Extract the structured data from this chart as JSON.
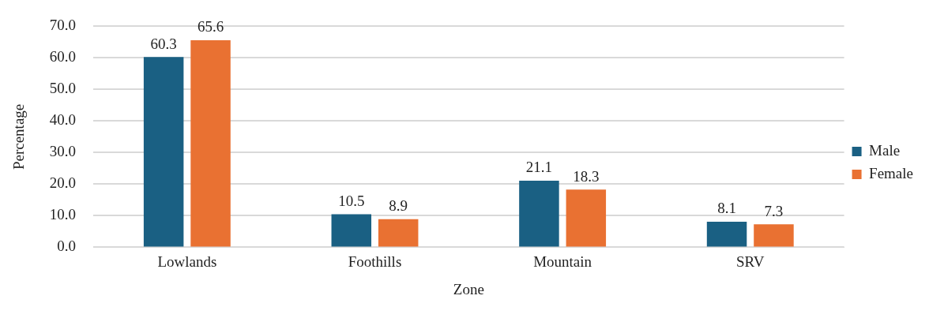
{
  "chart_data": {
    "type": "bar",
    "xlabel": "Zone",
    "ylabel": "Percentage",
    "categories": [
      "Lowlands",
      "Foothills",
      "Mountain",
      "SRV"
    ],
    "series": [
      {
        "name": "Male",
        "color": "#1a6083",
        "values": [
          60.3,
          10.5,
          21.1,
          8.1
        ]
      },
      {
        "name": "Female",
        "color": "#e97132",
        "values": [
          65.6,
          8.9,
          18.3,
          7.3
        ]
      }
    ],
    "ylim": [
      0,
      70
    ],
    "yticks": [
      {
        "value": 0,
        "label": "0.0"
      },
      {
        "value": 10,
        "label": "10.0"
      },
      {
        "value": 20,
        "label": "20.0"
      },
      {
        "value": 30,
        "label": "30.0"
      },
      {
        "value": 40,
        "label": "40.0"
      },
      {
        "value": 50,
        "label": "50.0"
      },
      {
        "value": 60,
        "label": "60.0"
      },
      {
        "value": 70,
        "label": "70.0"
      }
    ],
    "grid": "y",
    "legend": "right",
    "data_labels": true
  }
}
